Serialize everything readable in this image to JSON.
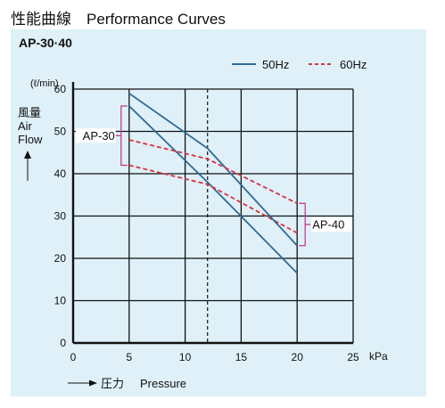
{
  "page": {
    "title": "性能曲線　Performance Curves"
  },
  "chart_data": {
    "type": "line",
    "title": "AP-30·40",
    "xlabel": "Pressure",
    "xlabel_prefix": "圧力",
    "xunit": "kPa",
    "ylabel_lines": [
      "風量",
      "Air",
      "Flow"
    ],
    "yunit": "(ℓ/min)",
    "xlim": [
      0,
      25
    ],
    "ylim": [
      0,
      60
    ],
    "xticks": [
      0,
      5,
      10,
      15,
      20,
      25
    ],
    "yticks": [
      0,
      10,
      20,
      30,
      40,
      50,
      60
    ],
    "grid": true,
    "reference_line_x": 12,
    "legend_position": "top-right",
    "legend": [
      {
        "label": "50Hz",
        "style": "solid",
        "color": "#2e6a94"
      },
      {
        "label": "60Hz",
        "style": "dashed",
        "color": "#d8333f"
      }
    ],
    "series": [
      {
        "model": "AP-30",
        "freq": "50Hz",
        "style": "solid",
        "color": "#2e6a94",
        "x": [
          5,
          12,
          20
        ],
        "y": [
          56,
          38,
          16.5
        ]
      },
      {
        "model": "AP-30",
        "freq": "60Hz",
        "style": "dashed",
        "color": "#d8333f",
        "x": [
          5,
          12,
          20
        ],
        "y": [
          42,
          37.5,
          26
        ]
      },
      {
        "model": "AP-40",
        "freq": "50Hz",
        "style": "solid",
        "color": "#2e6a94",
        "x": [
          5,
          12,
          20
        ],
        "y": [
          59,
          46,
          23
        ]
      },
      {
        "model": "AP-40",
        "freq": "60Hz",
        "style": "dashed",
        "color": "#d8333f",
        "x": [
          5,
          12,
          20
        ],
        "y": [
          48,
          43.5,
          33
        ]
      }
    ],
    "annotations": [
      {
        "text": "AP-30",
        "bracket_color": "#c2338a",
        "x_at": 5,
        "y_range": [
          42,
          56
        ],
        "side": "left"
      },
      {
        "text": "AP-40",
        "bracket_color": "#c2338a",
        "x_at": 20,
        "y_range": [
          23,
          33
        ],
        "side": "right"
      }
    ]
  }
}
